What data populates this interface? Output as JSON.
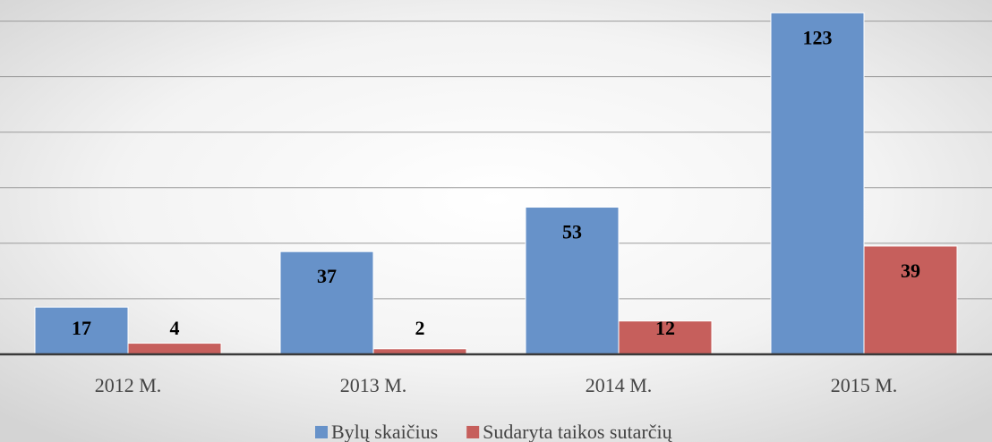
{
  "chart_data": {
    "type": "bar",
    "categories": [
      "2012 M.",
      "2013 M.",
      "2014 M.",
      "2015 M."
    ],
    "series": [
      {
        "name": "Bylų skaičius",
        "color": "#6792c9",
        "values": [
          17,
          37,
          53,
          123
        ]
      },
      {
        "name": "Sudaryta taikos sutarčių",
        "color": "#c65f5c",
        "values": [
          4,
          2,
          12,
          39
        ]
      }
    ],
    "ylim": [
      0,
      126
    ],
    "yticks": [
      0,
      20,
      40,
      60,
      80,
      100,
      120
    ],
    "grid": true,
    "legend": "bottom"
  }
}
